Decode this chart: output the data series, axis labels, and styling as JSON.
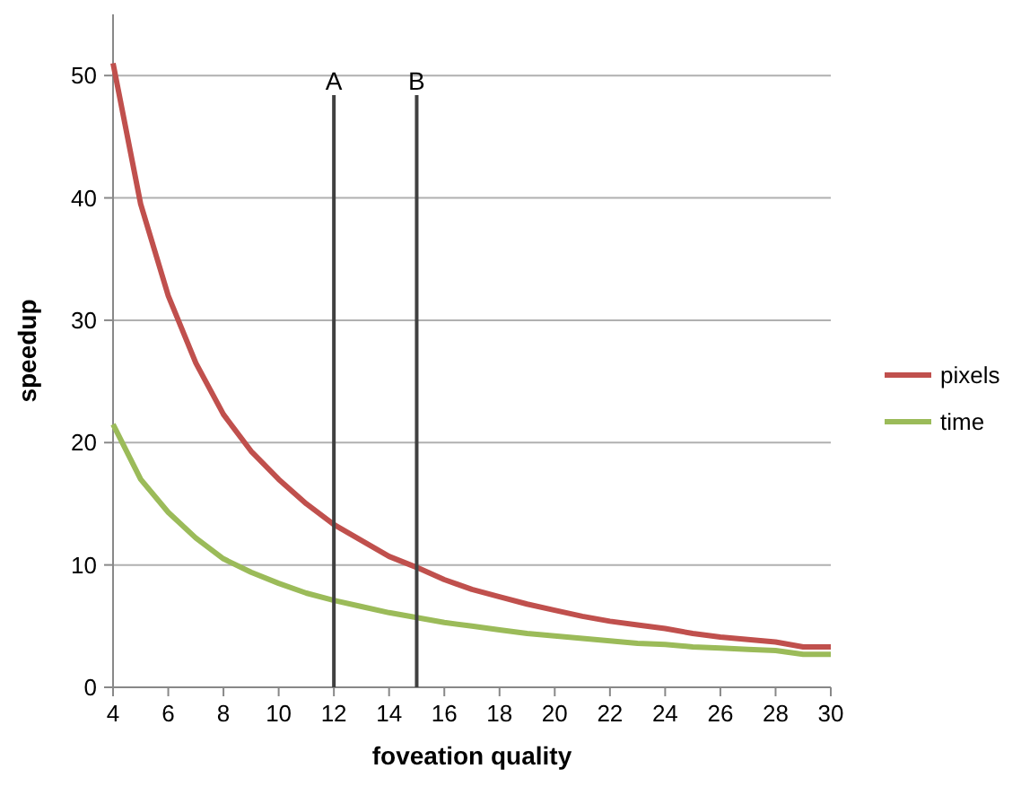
{
  "chart_data": {
    "type": "line",
    "xlabel": "foveation quality",
    "ylabel": "speedup",
    "x": [
      4,
      5,
      6,
      7,
      8,
      9,
      10,
      11,
      12,
      13,
      14,
      15,
      16,
      17,
      18,
      19,
      20,
      21,
      22,
      23,
      24,
      25,
      26,
      27,
      28,
      29,
      30
    ],
    "series": [
      {
        "name": "pixels",
        "color": "#c0504d",
        "values": [
          51,
          39.5,
          32,
          26.5,
          22.3,
          19.3,
          17,
          15,
          13.3,
          12,
          10.7,
          9.8,
          8.8,
          8,
          7.4,
          6.8,
          6.3,
          5.8,
          5.4,
          5.1,
          4.8,
          4.4,
          4.1,
          3.9,
          3.7,
          3.3,
          3.3
        ]
      },
      {
        "name": "time",
        "color": "#9bbb59",
        "values": [
          21.5,
          17,
          14.3,
          12.2,
          10.5,
          9.4,
          8.5,
          7.7,
          7.1,
          6.6,
          6.1,
          5.7,
          5.3,
          5,
          4.7,
          4.4,
          4.2,
          4,
          3.8,
          3.6,
          3.5,
          3.3,
          3.2,
          3.1,
          3,
          2.7,
          2.7
        ]
      }
    ],
    "xlim": [
      4,
      30
    ],
    "xticks": [
      4,
      6,
      8,
      10,
      12,
      14,
      16,
      18,
      20,
      22,
      24,
      26,
      28,
      30
    ],
    "ylim": [
      0,
      55
    ],
    "yticks": [
      0,
      10,
      20,
      30,
      40,
      50
    ],
    "ref_lines": [
      {
        "axis": "x",
        "value": 12,
        "label": "A",
        "color": "#404040"
      },
      {
        "axis": "x",
        "value": 15,
        "label": "B",
        "color": "#404040"
      }
    ],
    "grid": "y",
    "legend": "right",
    "marker": "none",
    "line_style": "solid"
  }
}
